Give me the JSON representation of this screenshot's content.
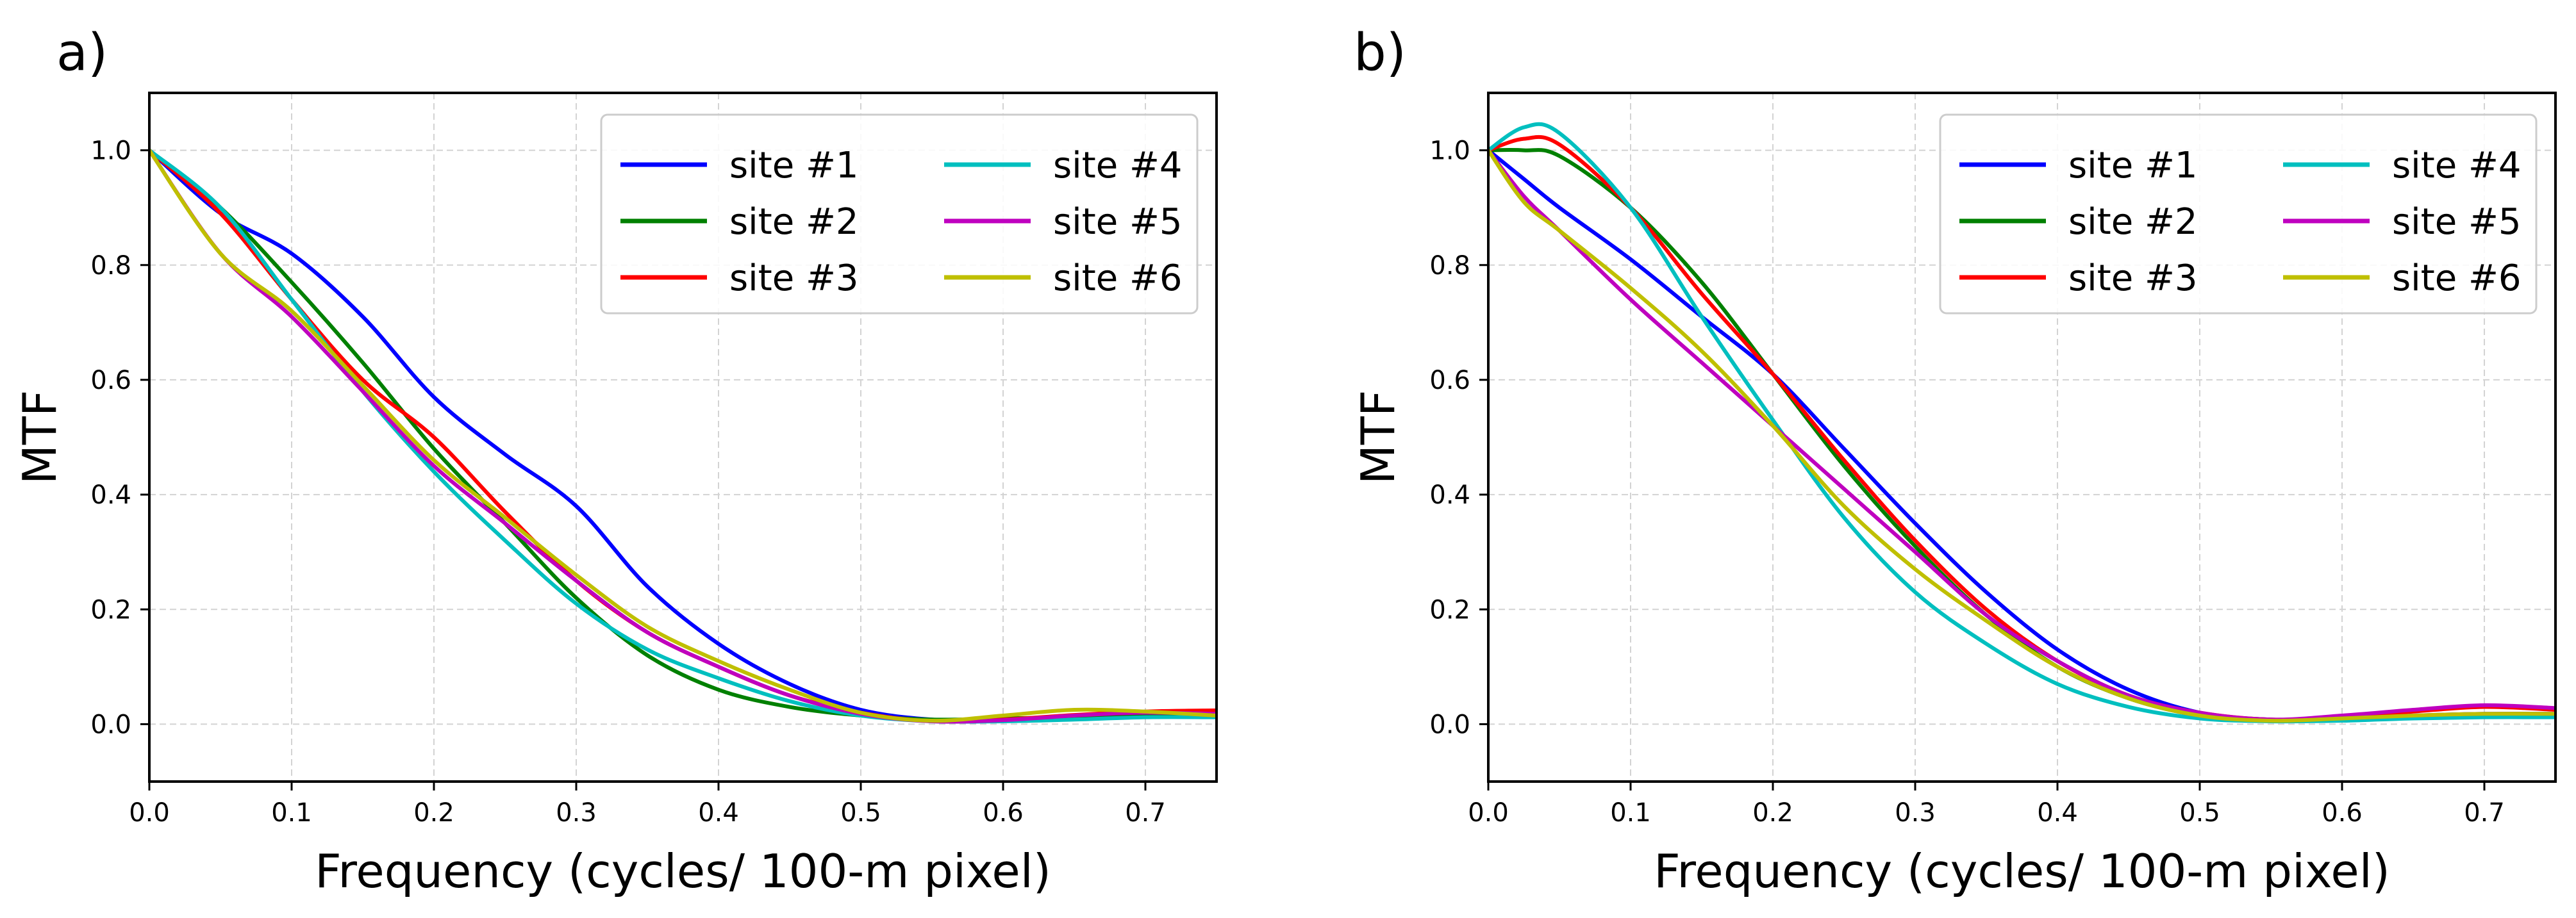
{
  "chart_data": [
    {
      "type": "line",
      "panel_label": "a)",
      "xlabel": "Frequency (cycles/ 100-m pixel)",
      "ylabel": "MTF",
      "xlim": [
        0.0,
        0.75
      ],
      "ylim": [
        -0.1,
        1.1
      ],
      "xticks": [
        0.0,
        0.1,
        0.2,
        0.3,
        0.4,
        0.5,
        0.6,
        0.7
      ],
      "xtick_labels": [
        "0.0",
        "0.1",
        "0.2",
        "0.3",
        "0.4",
        "0.5",
        "0.6",
        "0.7"
      ],
      "yticks": [
        0.0,
        0.2,
        0.4,
        0.6,
        0.8,
        1.0
      ],
      "ytick_labels": [
        "0.0",
        "0.2",
        "0.4",
        "0.6",
        "0.8",
        "1.0"
      ],
      "grid": true,
      "legend_position": "top-right",
      "legend_columns": 2,
      "x": [
        0.0,
        0.05,
        0.1,
        0.15,
        0.2,
        0.25,
        0.3,
        0.35,
        0.4,
        0.45,
        0.5,
        0.55,
        0.6,
        0.65,
        0.7,
        0.75
      ],
      "series": [
        {
          "name": "site #1",
          "color": "#0000ff",
          "values": [
            1.0,
            0.89,
            0.82,
            0.71,
            0.57,
            0.47,
            0.38,
            0.24,
            0.14,
            0.07,
            0.025,
            0.008,
            0.006,
            0.01,
            0.015,
            0.018
          ]
        },
        {
          "name": "site #2",
          "color": "#008000",
          "values": [
            1.0,
            0.9,
            0.77,
            0.63,
            0.48,
            0.35,
            0.22,
            0.12,
            0.06,
            0.03,
            0.015,
            0.008,
            0.01,
            0.012,
            0.015,
            0.015
          ]
        },
        {
          "name": "site #3",
          "color": "#ff0000",
          "values": [
            1.0,
            0.89,
            0.74,
            0.6,
            0.5,
            0.37,
            0.25,
            0.16,
            0.1,
            0.05,
            0.02,
            0.005,
            0.008,
            0.016,
            0.022,
            0.024
          ]
        },
        {
          "name": "site #4",
          "color": "#00bfbf",
          "values": [
            1.0,
            0.9,
            0.74,
            0.58,
            0.44,
            0.32,
            0.21,
            0.13,
            0.08,
            0.04,
            0.015,
            0.005,
            0.005,
            0.008,
            0.012,
            0.012
          ]
        },
        {
          "name": "site #5",
          "color": "#bf00bf",
          "values": [
            1.0,
            0.82,
            0.71,
            0.58,
            0.45,
            0.35,
            0.25,
            0.16,
            0.1,
            0.05,
            0.018,
            0.005,
            0.007,
            0.015,
            0.02,
            0.018
          ]
        },
        {
          "name": "site #6",
          "color": "#bfbf00",
          "values": [
            1.0,
            0.82,
            0.72,
            0.59,
            0.46,
            0.36,
            0.26,
            0.17,
            0.11,
            0.06,
            0.02,
            0.006,
            0.015,
            0.025,
            0.022,
            0.015
          ]
        }
      ]
    },
    {
      "type": "line",
      "panel_label": "b)",
      "xlabel": "Frequency (cycles/ 100-m pixel)",
      "ylabel": "MTF",
      "xlim": [
        0.0,
        0.75
      ],
      "ylim": [
        -0.1,
        1.1
      ],
      "xticks": [
        0.0,
        0.1,
        0.2,
        0.3,
        0.4,
        0.5,
        0.6,
        0.7
      ],
      "xtick_labels": [
        "0.0",
        "0.1",
        "0.2",
        "0.3",
        "0.4",
        "0.5",
        "0.6",
        "0.7"
      ],
      "yticks": [
        0.0,
        0.2,
        0.4,
        0.6,
        0.8,
        1.0
      ],
      "ytick_labels": [
        "0.0",
        "0.2",
        "0.4",
        "0.6",
        "0.8",
        "1.0"
      ],
      "grid": true,
      "legend_position": "top-right",
      "legend_columns": 2,
      "x": [
        0.0,
        0.025,
        0.05,
        0.1,
        0.15,
        0.2,
        0.25,
        0.3,
        0.35,
        0.4,
        0.45,
        0.5,
        0.55,
        0.6,
        0.65,
        0.7,
        0.75
      ],
      "series": [
        {
          "name": "site #1",
          "color": "#0000ff",
          "values": [
            1.0,
            0.95,
            0.9,
            0.81,
            0.71,
            0.61,
            0.48,
            0.35,
            0.23,
            0.13,
            0.06,
            0.02,
            0.008,
            0.01,
            0.015,
            0.018,
            0.018
          ]
        },
        {
          "name": "site #2",
          "color": "#008000",
          "values": [
            1.0,
            1.0,
            0.99,
            0.9,
            0.77,
            0.61,
            0.45,
            0.31,
            0.19,
            0.1,
            0.045,
            0.015,
            0.006,
            0.008,
            0.012,
            0.015,
            0.015
          ]
        },
        {
          "name": "site #3",
          "color": "#ff0000",
          "values": [
            1.0,
            1.02,
            1.01,
            0.9,
            0.75,
            0.61,
            0.46,
            0.32,
            0.2,
            0.11,
            0.05,
            0.02,
            0.008,
            0.012,
            0.022,
            0.03,
            0.025
          ]
        },
        {
          "name": "site #4",
          "color": "#00bfbf",
          "values": [
            1.0,
            1.04,
            1.03,
            0.9,
            0.71,
            0.53,
            0.36,
            0.23,
            0.14,
            0.07,
            0.03,
            0.01,
            0.005,
            0.006,
            0.01,
            0.012,
            0.012
          ]
        },
        {
          "name": "site #5",
          "color": "#bf00bf",
          "values": [
            1.0,
            0.92,
            0.86,
            0.74,
            0.63,
            0.52,
            0.41,
            0.3,
            0.19,
            0.11,
            0.05,
            0.02,
            0.008,
            0.015,
            0.025,
            0.033,
            0.028
          ]
        },
        {
          "name": "site #6",
          "color": "#bfbf00",
          "values": [
            1.0,
            0.91,
            0.86,
            0.76,
            0.65,
            0.52,
            0.38,
            0.27,
            0.18,
            0.1,
            0.045,
            0.015,
            0.006,
            0.01,
            0.015,
            0.018,
            0.018
          ]
        }
      ]
    }
  ]
}
